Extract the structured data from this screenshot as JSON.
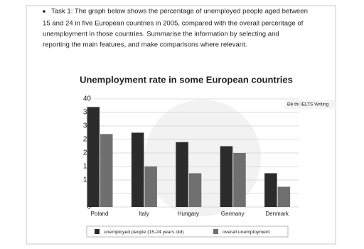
{
  "task_text": [
    "Task 1: The graph below shows the percentage of unemployed people aged between",
    "15 and 24 in five European countries in 2005, compared with the overall percentage of",
    "unemployment in those countries. Summarise the information by selecting and",
    "reporting the main features, and make comparisons where relevant."
  ],
  "watermark": "Đề thi IELTS Writing",
  "chart_data": {
    "type": "bar",
    "title": "Unemployment rate in some European countries",
    "categories": [
      "Poland",
      "Italy",
      "Hungary",
      "Germany",
      "Denmark"
    ],
    "series": [
      {
        "name": "unemployed people (15-24 years old)",
        "color": "#2b2b2b",
        "values": [
          37,
          27.5,
          24,
          22.5,
          12.5
        ]
      },
      {
        "name": "overall unemployment",
        "color": "#6f6f6f",
        "values": [
          27,
          15,
          12.5,
          20,
          7.5
        ]
      }
    ],
    "ylim": [
      0,
      40
    ],
    "yticks": [
      0,
      5,
      10,
      15,
      20,
      25,
      30,
      35,
      40
    ],
    "grid": true,
    "legend": "bottom"
  }
}
